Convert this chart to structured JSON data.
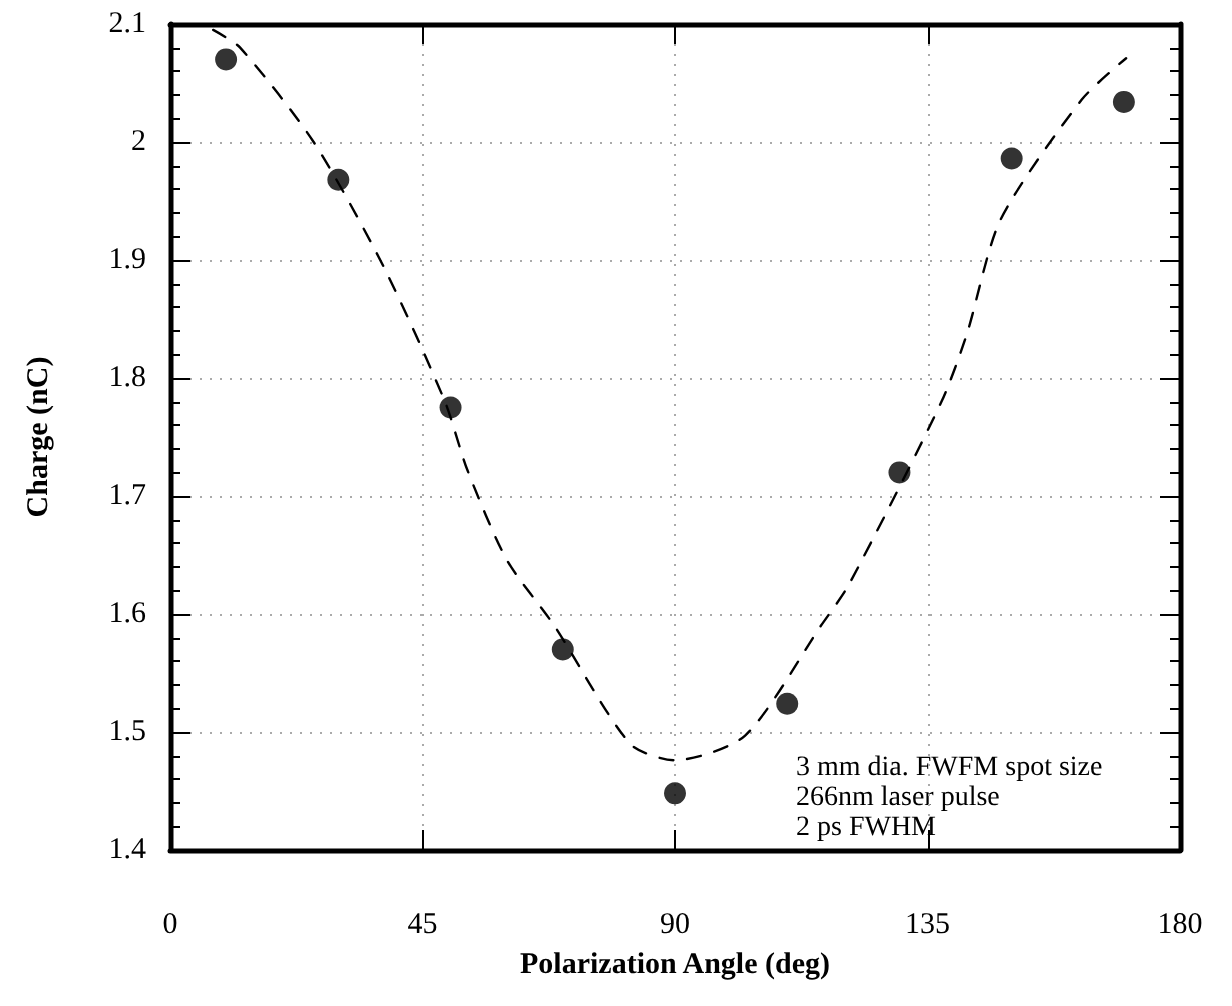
{
  "chart_data": {
    "type": "scatter",
    "xlabel": "Polarization Angle (deg)",
    "ylabel": "Charge (nC)",
    "xlim": [
      0,
      180
    ],
    "xticks": [
      0,
      45,
      90,
      135,
      180
    ],
    "ylim": [
      1.4,
      2.1
    ],
    "yticks": [
      1.4,
      1.5,
      1.6,
      1.7,
      1.8,
      1.9,
      2,
      2.1
    ],
    "grid": true,
    "marker": "circle",
    "series": [
      {
        "type": "scatter",
        "color": "#000000",
        "x": [
          10,
          30,
          50,
          70,
          90,
          110,
          130,
          150,
          170
        ],
        "values": [
          2.07,
          1.968,
          1.775,
          1.57,
          1.448,
          1.524,
          1.72,
          1.986,
          2.034
        ]
      },
      {
        "type": "line",
        "color": "#000000",
        "line_style": "dashed",
        "marker": "none",
        "x": [
          7.7,
          12.5,
          25.6,
          38,
          49,
          53,
          60,
          68.5,
          82,
          90,
          102.5,
          116,
          121,
          137.5,
          142,
          148,
          162.5,
          170.4
        ],
        "values": [
          2.095,
          2.08,
          2.0,
          1.895,
          1.78,
          1.722,
          1.646,
          1.59,
          1.49,
          1.476,
          1.497,
          1.59,
          1.625,
          1.78,
          1.837,
          1.934,
          2.036,
          2.071
        ]
      }
    ],
    "annotations": [
      "3 mm dia. FWFM spot size",
      "266nm laser pulse",
      "2 ps FWHM"
    ]
  }
}
